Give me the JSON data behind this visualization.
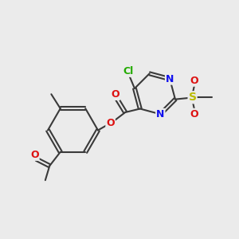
{
  "bg_color": "#ebebeb",
  "bond_color": "#3a3a3a",
  "bond_width": 1.5,
  "atoms": {
    "Cl": {
      "color": "#22aa00"
    },
    "N": {
      "color": "#1010ee"
    },
    "O": {
      "color": "#dd1111"
    },
    "S": {
      "color": "#bbbb00"
    },
    "C": {
      "color": "#3a3a3a"
    }
  },
  "font_size": 9
}
